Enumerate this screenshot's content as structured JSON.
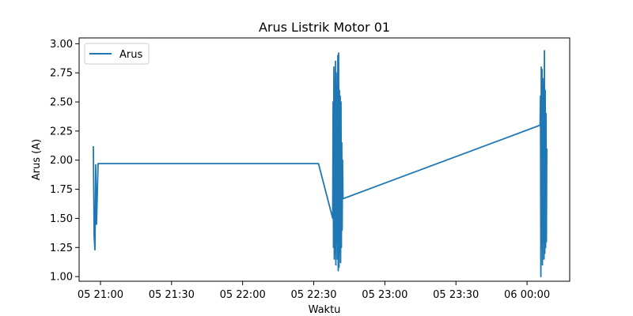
{
  "chart_data": {
    "type": "line",
    "title": "Arus Listrik Motor 01",
    "xlabel": "Waktu",
    "ylabel": "Arus (A)",
    "x_axis_type": "time",
    "xlim": [
      "05 20:51",
      "06 00:18"
    ],
    "ylim": [
      0.96,
      3.05
    ],
    "x_ticks": [
      "05 21:00",
      "05 21:30",
      "05 22:00",
      "05 22:30",
      "05 23:00",
      "05 23:30",
      "06 00:00"
    ],
    "y_ticks": [
      "1.00",
      "1.25",
      "1.50",
      "1.75",
      "2.00",
      "2.25",
      "2.50",
      "2.75",
      "3.00"
    ],
    "grid": false,
    "legend": {
      "placement": "top-left"
    },
    "series": [
      {
        "name": "Arus",
        "color": "#1f77b4",
        "x": [
          "05 20:57:00",
          "05 20:57:20",
          "05 20:57:40",
          "05 20:58:00",
          "05 20:58:20",
          "05 20:59:00",
          "05 21:30:00",
          "05 22:00:00",
          "05 22:32:00",
          "05 22:38:00",
          "05 22:38:10",
          "05 22:38:20",
          "05 22:38:30",
          "05 22:38:40",
          "05 22:38:50",
          "05 22:39:00",
          "05 22:39:10",
          "05 22:39:20",
          "05 22:39:30",
          "05 22:39:40",
          "05 22:39:50",
          "05 22:40:00",
          "05 22:40:10",
          "05 22:40:20",
          "05 22:40:30",
          "05 22:40:40",
          "05 22:40:50",
          "05 22:41:00",
          "05 22:41:10",
          "05 22:41:20",
          "05 22:41:30",
          "05 22:41:40",
          "05 22:41:50",
          "05 22:42:00",
          "05 22:42:10",
          "05 22:42:20",
          "05 22:42:30",
          "06 00:05:30",
          "06 00:05:40",
          "06 00:05:50",
          "06 00:06:00",
          "06 00:06:10",
          "06 00:06:20",
          "06 00:06:30",
          "06 00:06:40",
          "06 00:06:50",
          "06 00:07:00",
          "06 00:07:10",
          "06 00:07:20",
          "06 00:07:30",
          "06 00:07:40",
          "06 00:07:50",
          "06 00:08:00",
          "06 00:08:10",
          "06 00:08:20"
        ],
        "values": [
          2.12,
          1.35,
          1.23,
          1.96,
          1.45,
          1.97,
          1.97,
          1.97,
          1.97,
          1.5,
          2.5,
          1.25,
          2.8,
          1.15,
          2.7,
          1.2,
          2.85,
          1.1,
          2.75,
          1.3,
          2.65,
          1.15,
          2.9,
          1.05,
          2.92,
          1.08,
          2.6,
          1.2,
          2.55,
          1.12,
          2.5,
          1.25,
          2.15,
          1.4,
          2.0,
          1.67,
          1.67,
          2.3,
          2.55,
          1.0,
          2.8,
          1.25,
          2.78,
          1.1,
          2.7,
          1.3,
          2.65,
          1.15,
          2.94,
          1.2,
          2.6,
          1.25,
          2.4,
          1.3,
          2.1
        ]
      }
    ]
  }
}
